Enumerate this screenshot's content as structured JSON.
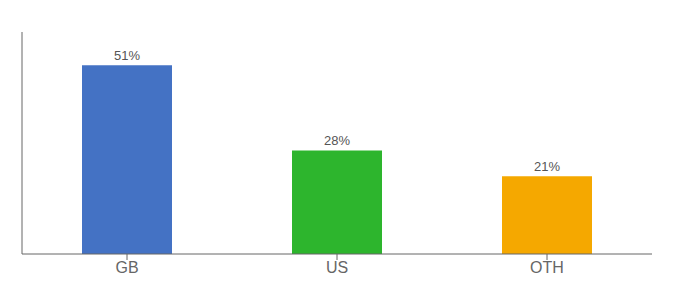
{
  "chart_data": {
    "type": "bar",
    "categories": [
      "GB",
      "US",
      "OTH"
    ],
    "values": [
      51,
      28,
      21
    ],
    "value_labels": [
      "51%",
      "28%",
      "21%"
    ],
    "colors": [
      "#4472c4",
      "#2db52d",
      "#f5a800"
    ],
    "ylim": [
      0,
      60
    ],
    "data_labels": true,
    "tick_labels": "x",
    "grid": false
  }
}
